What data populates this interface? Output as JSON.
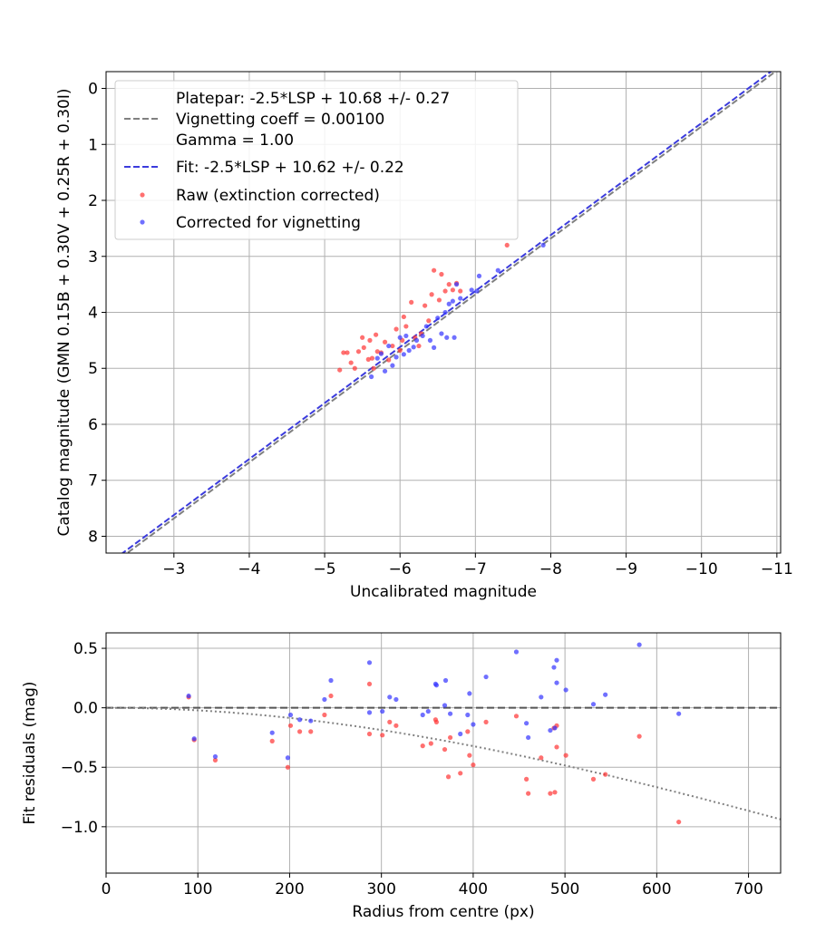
{
  "chart_data": [
    {
      "type": "scatter",
      "xlabel": "Uncalibrated magnitude",
      "ylabel": "Catalog magnitude (GMN 0.15B + 0.30V + 0.25R + 0.30I)",
      "xlim": [
        -2.1,
        -11.05
      ],
      "ylim": [
        8.3,
        -0.3
      ],
      "x_inverted": true,
      "y_inverted": true,
      "xticks": [
        -3,
        -4,
        -5,
        -6,
        -7,
        -8,
        -9,
        -10,
        -11
      ],
      "xtick_labels": [
        "−3",
        "−4",
        "−5",
        "−6",
        "−7",
        "−8",
        "−9",
        "−10",
        "−11"
      ],
      "yticks": [
        0,
        1,
        2,
        3,
        4,
        5,
        6,
        7,
        8
      ],
      "ytick_labels": [
        "0",
        "1",
        "2",
        "3",
        "4",
        "5",
        "6",
        "7",
        "8"
      ],
      "grid": true,
      "legend_position": "top-left",
      "lines": [
        {
          "name": "Platepar: -2.5*LSP + 10.68 +/- 0.27",
          "name_lines": [
            "Platepar: -2.5*LSP + 10.68 +/- 0.27",
            "Vignetting coeff = 0.00100",
            "Gamma = 1.00"
          ],
          "slope": 1.0,
          "intercept": 10.68,
          "color": "#808080",
          "style": "dashed"
        },
        {
          "name": "Fit: -2.5*LSP + 10.62 +/- 0.22",
          "slope": 1.0,
          "intercept": 10.62,
          "color": "#3b3bdd",
          "style": "dashed"
        }
      ],
      "series": [
        {
          "name": "Raw (extinction corrected)",
          "color": "#ff3333",
          "points": [
            [
              -5.2,
              5.03
            ],
            [
              -5.25,
              4.72
            ],
            [
              -5.3,
              4.72
            ],
            [
              -5.35,
              4.9
            ],
            [
              -5.4,
              5.0
            ],
            [
              -5.45,
              4.7
            ],
            [
              -5.5,
              4.45
            ],
            [
              -5.52,
              4.63
            ],
            [
              -5.58,
              4.84
            ],
            [
              -5.6,
              4.5
            ],
            [
              -5.63,
              4.82
            ],
            [
              -5.65,
              5.0
            ],
            [
              -5.68,
              4.4
            ],
            [
              -5.7,
              4.7
            ],
            [
              -5.75,
              4.72
            ],
            [
              -5.8,
              4.53
            ],
            [
              -5.85,
              4.85
            ],
            [
              -5.9,
              4.6
            ],
            [
              -5.95,
              4.3
            ],
            [
              -6.0,
              4.68
            ],
            [
              -6.03,
              4.5
            ],
            [
              -6.05,
              4.08
            ],
            [
              -6.08,
              4.25
            ],
            [
              -6.15,
              3.82
            ],
            [
              -6.2,
              4.45
            ],
            [
              -6.25,
              4.6
            ],
            [
              -6.28,
              4.38
            ],
            [
              -6.33,
              3.88
            ],
            [
              -6.38,
              4.15
            ],
            [
              -6.42,
              3.68
            ],
            [
              -6.45,
              3.25
            ],
            [
              -6.52,
              3.78
            ],
            [
              -6.55,
              3.32
            ],
            [
              -6.6,
              3.62
            ],
            [
              -6.65,
              3.5
            ],
            [
              -6.7,
              3.6
            ],
            [
              -6.75,
              3.48
            ],
            [
              -6.8,
              3.62
            ],
            [
              -7.42,
              2.8
            ]
          ]
        },
        {
          "name": "Corrected for vignetting",
          "color": "#3333ff",
          "points": [
            [
              -5.62,
              5.15
            ],
            [
              -5.7,
              4.82
            ],
            [
              -5.75,
              4.74
            ],
            [
              -5.8,
              5.05
            ],
            [
              -5.85,
              4.6
            ],
            [
              -5.9,
              4.95
            ],
            [
              -5.95,
              4.8
            ],
            [
              -6.0,
              4.45
            ],
            [
              -6.05,
              4.75
            ],
            [
              -6.08,
              4.42
            ],
            [
              -6.12,
              4.68
            ],
            [
              -6.18,
              4.62
            ],
            [
              -6.22,
              4.5
            ],
            [
              -6.3,
              4.42
            ],
            [
              -6.35,
              4.25
            ],
            [
              -6.4,
              4.5
            ],
            [
              -6.45,
              4.63
            ],
            [
              -6.5,
              4.1
            ],
            [
              -6.55,
              4.38
            ],
            [
              -6.6,
              4.0
            ],
            [
              -6.62,
              4.45
            ],
            [
              -6.65,
              3.85
            ],
            [
              -6.7,
              3.8
            ],
            [
              -6.72,
              4.45
            ],
            [
              -6.75,
              3.5
            ],
            [
              -6.8,
              3.75
            ],
            [
              -6.95,
              3.6
            ],
            [
              -7.02,
              3.62
            ],
            [
              -7.05,
              3.35
            ],
            [
              -7.3,
              3.25
            ],
            [
              -7.9,
              2.8
            ]
          ]
        }
      ]
    },
    {
      "type": "scatter",
      "xlabel": "Radius from centre (px)",
      "ylabel": "Fit residuals (mag)",
      "xlim": [
        0,
        735
      ],
      "ylim": [
        -1.39,
        0.63
      ],
      "xticks": [
        0,
        100,
        200,
        300,
        400,
        500,
        600,
        700
      ],
      "xtick_labels": [
        "0",
        "100",
        "200",
        "300",
        "400",
        "500",
        "600",
        "700"
      ],
      "yticks": [
        0.5,
        0.0,
        -0.5,
        -1.0
      ],
      "ytick_labels": [
        "0.5",
        "0.0",
        "−0.5",
        "−1.0"
      ],
      "grid": true,
      "reference_lines": [
        {
          "type": "horizontal",
          "y": 0.0,
          "color": "#555555",
          "style": "dashed"
        },
        {
          "type": "curve",
          "vignetting_coeff": 0.001,
          "color": "#808080",
          "style": "dotted"
        }
      ],
      "series": [
        {
          "name": "Raw (extinction corrected)",
          "color": "#ff3333",
          "points": [
            [
              90,
              0.09
            ],
            [
              96,
              -0.27
            ],
            [
              119,
              -0.44
            ],
            [
              181,
              -0.28
            ],
            [
              198,
              -0.5
            ],
            [
              201,
              -0.15
            ],
            [
              211,
              -0.2
            ],
            [
              223,
              -0.2
            ],
            [
              238,
              -0.06
            ],
            [
              245,
              0.1
            ],
            [
              287,
              0.2
            ],
            [
              287,
              -0.22
            ],
            [
              301,
              -0.23
            ],
            [
              309,
              -0.12
            ],
            [
              316,
              -0.15
            ],
            [
              345,
              -0.32
            ],
            [
              354,
              -0.3
            ],
            [
              359,
              -0.1
            ],
            [
              360,
              -0.12
            ],
            [
              369,
              -0.35
            ],
            [
              373,
              -0.58
            ],
            [
              375,
              -0.25
            ],
            [
              386,
              -0.55
            ],
            [
              394,
              -0.2
            ],
            [
              396,
              -0.4
            ],
            [
              400,
              -0.48
            ],
            [
              414,
              -0.12
            ],
            [
              447,
              -0.07
            ],
            [
              458,
              -0.6
            ],
            [
              460,
              -0.72
            ],
            [
              474,
              -0.42
            ],
            [
              484,
              -0.72
            ],
            [
              488,
              -0.17
            ],
            [
              489,
              -0.71
            ],
            [
              491,
              -0.33
            ],
            [
              491,
              -0.15
            ],
            [
              501,
              -0.4
            ],
            [
              531,
              -0.6
            ],
            [
              544,
              -0.56
            ],
            [
              581,
              -0.24
            ],
            [
              624,
              -0.96
            ]
          ]
        },
        {
          "name": "Corrected for vignetting",
          "color": "#3333ff",
          "points": [
            [
              90,
              0.1
            ],
            [
              96,
              -0.26
            ],
            [
              119,
              -0.41
            ],
            [
              181,
              -0.21
            ],
            [
              198,
              -0.42
            ],
            [
              201,
              -0.06
            ],
            [
              211,
              -0.1
            ],
            [
              223,
              -0.11
            ],
            [
              238,
              0.07
            ],
            [
              245,
              0.23
            ],
            [
              287,
              0.38
            ],
            [
              287,
              -0.04
            ],
            [
              301,
              -0.03
            ],
            [
              309,
              0.09
            ],
            [
              316,
              0.07
            ],
            [
              345,
              -0.06
            ],
            [
              351,
              -0.03
            ],
            [
              359,
              0.2
            ],
            [
              360,
              0.19
            ],
            [
              369,
              0.02
            ],
            [
              370,
              0.23
            ],
            [
              375,
              -0.05
            ],
            [
              386,
              -0.22
            ],
            [
              394,
              -0.06
            ],
            [
              396,
              0.12
            ],
            [
              400,
              -0.14
            ],
            [
              414,
              0.26
            ],
            [
              447,
              0.47
            ],
            [
              458,
              -0.13
            ],
            [
              460,
              -0.25
            ],
            [
              474,
              0.09
            ],
            [
              484,
              -0.19
            ],
            [
              488,
              0.34
            ],
            [
              489,
              -0.17
            ],
            [
              491,
              0.21
            ],
            [
              491,
              0.4
            ],
            [
              501,
              0.15
            ],
            [
              531,
              0.03
            ],
            [
              544,
              0.11
            ],
            [
              581,
              0.53
            ],
            [
              624,
              -0.05
            ]
          ]
        }
      ]
    }
  ]
}
